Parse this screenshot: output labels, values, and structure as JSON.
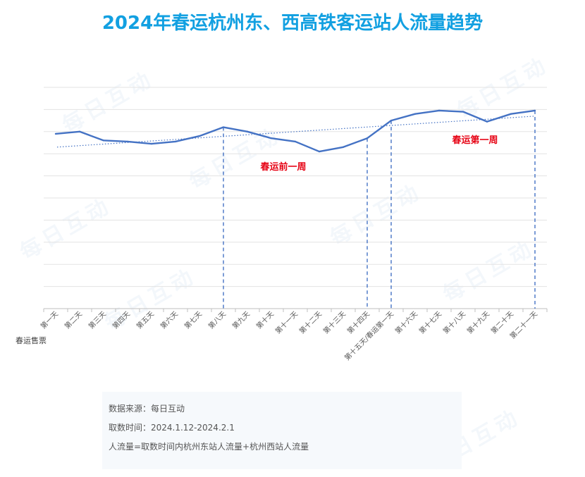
{
  "title": "2024年春运杭州东、西高铁客运站人流量趋势",
  "watermark": "每日互动",
  "colors": {
    "title": "#12a0e1",
    "line": "#4472c4",
    "annotation": "#e60012",
    "grid": "#e3e3e3",
    "dash": "#4472c4"
  },
  "chart_data": {
    "type": "line",
    "title": "2024年春运杭州东、西高铁客运站人流量趋势",
    "xlabel": "春运售票",
    "ylabel": "",
    "grid": true,
    "y_axis_labels_shown": false,
    "categories": [
      "第一天",
      "第二天",
      "第三天",
      "第四天",
      "第五天",
      "第六天",
      "第七天",
      "第八天",
      "第九天",
      "第十天",
      "第十一天",
      "第十二天",
      "第十三天",
      "第十四天",
      "第十五天/春运第一天",
      "第十六天",
      "第十七天",
      "第十八天",
      "第十九天",
      "第二十天",
      "第二十一天"
    ],
    "series": [
      {
        "values": [
          79,
          80,
          76,
          75.5,
          74.5,
          75.5,
          78,
          82,
          80,
          77,
          75.5,
          71,
          73,
          77,
          85,
          88,
          89.5,
          89,
          84.5,
          88,
          89.5
        ]
      }
    ],
    "trendline": {
      "start": 73,
      "end": 87
    },
    "ylim": [
      0,
      100
    ],
    "markers": [
      {
        "category_index": 7,
        "style": "dashed"
      },
      {
        "category_index": 13,
        "style": "dashed"
      },
      {
        "category_index": 14,
        "style": "dashed"
      },
      {
        "category_index": 20,
        "style": "dashed"
      }
    ],
    "annotations": [
      {
        "text": "春运前一周"
      },
      {
        "text": "春运第一周"
      }
    ]
  },
  "source": {
    "line1": "数据来源：每日互动",
    "line2": "取数时间：2024.1.12-2024.2.1",
    "line3": "人流量=取数时间内杭州东站人流量+杭州西站人流量"
  }
}
